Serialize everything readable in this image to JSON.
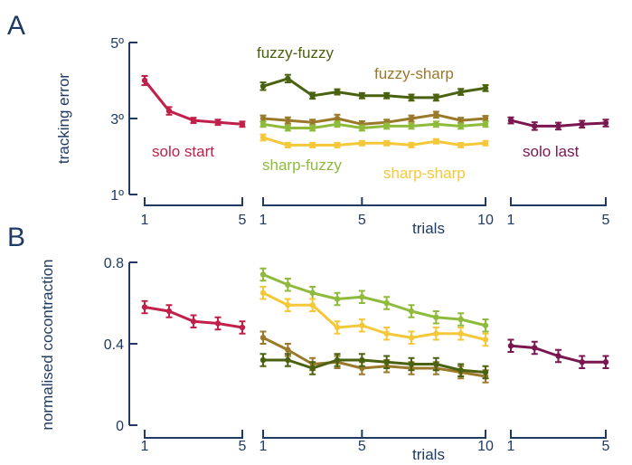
{
  "chart_data": [
    {
      "panel": "A",
      "type": "line",
      "ylabel": "tracking error",
      "xlabel": "trials",
      "ylim": [
        1,
        5
      ],
      "yticks": [
        1,
        3,
        5
      ],
      "ytick_labels": [
        "1º",
        "3º",
        "5º"
      ],
      "groups": [
        {
          "x": [
            1,
            2,
            3,
            4,
            5
          ],
          "xticks": [
            1,
            5
          ],
          "series": [
            {
              "name": "solo start",
              "color": "#c0204a",
              "y": [
                4.0,
                3.2,
                2.95,
                2.9,
                2.85
              ],
              "err": [
                0.12,
                0.1,
                0.07,
                0.07,
                0.07
              ]
            }
          ]
        },
        {
          "x": [
            1,
            2,
            3,
            4,
            5,
            6,
            7,
            8,
            9,
            10
          ],
          "xticks": [
            1,
            5,
            10
          ],
          "series": [
            {
              "name": "fuzzy-fuzzy",
              "color": "#4a6210",
              "y": [
                3.85,
                4.05,
                3.6,
                3.7,
                3.6,
                3.6,
                3.55,
                3.55,
                3.7,
                3.8
              ],
              "err": [
                0.1,
                0.1,
                0.08,
                0.07,
                0.07,
                0.07,
                0.08,
                0.08,
                0.08,
                0.08
              ]
            },
            {
              "name": "fuzzy-sharp",
              "color": "#9a7a2a",
              "y": [
                3.0,
                2.95,
                2.9,
                3.0,
                2.85,
                2.9,
                3.0,
                3.1,
                2.95,
                3.0
              ],
              "err": [
                0.08,
                0.08,
                0.07,
                0.1,
                0.08,
                0.07,
                0.08,
                0.08,
                0.07,
                0.07
              ]
            },
            {
              "name": "sharp-fuzzy",
              "color": "#8fbb3c",
              "y": [
                2.85,
                2.75,
                2.75,
                2.85,
                2.75,
                2.8,
                2.8,
                2.85,
                2.8,
                2.85
              ],
              "err": [
                0.07,
                0.07,
                0.07,
                0.07,
                0.07,
                0.07,
                0.07,
                0.07,
                0.07,
                0.07
              ]
            },
            {
              "name": "sharp-sharp",
              "color": "#f5c83a",
              "y": [
                2.5,
                2.3,
                2.3,
                2.3,
                2.35,
                2.35,
                2.3,
                2.4,
                2.3,
                2.35
              ],
              "err": [
                0.08,
                0.06,
                0.06,
                0.06,
                0.06,
                0.06,
                0.06,
                0.06,
                0.06,
                0.06
              ]
            }
          ]
        },
        {
          "x": [
            1,
            2,
            3,
            4,
            5
          ],
          "xticks": [
            1,
            5
          ],
          "series": [
            {
              "name": "solo last",
              "color": "#7a1650",
              "y": [
                2.95,
                2.8,
                2.8,
                2.85,
                2.88
              ],
              "err": [
                0.08,
                0.1,
                0.09,
                0.09,
                0.09
              ]
            }
          ]
        }
      ]
    },
    {
      "panel": "B",
      "type": "line",
      "ylabel": "normalised cocontraction",
      "xlabel": "trials",
      "ylim": [
        0,
        0.8
      ],
      "yticks": [
        0,
        0.4,
        0.8
      ],
      "ytick_labels": [
        "0",
        "0.4",
        "0.8"
      ],
      "groups": [
        {
          "x": [
            1,
            2,
            3,
            4,
            5
          ],
          "xticks": [
            1,
            5
          ],
          "series": [
            {
              "name": "solo start",
              "color": "#c0204a",
              "y": [
                0.58,
                0.56,
                0.51,
                0.5,
                0.48
              ],
              "err": [
                0.03,
                0.03,
                0.03,
                0.03,
                0.03
              ]
            }
          ]
        },
        {
          "x": [
            1,
            2,
            3,
            4,
            5,
            6,
            7,
            8,
            9,
            10
          ],
          "xticks": [
            1,
            5,
            10
          ],
          "series": [
            {
              "name": "sharp-fuzzy",
              "color": "#8fbb3c",
              "y": [
                0.74,
                0.69,
                0.65,
                0.62,
                0.63,
                0.6,
                0.56,
                0.53,
                0.52,
                0.49
              ],
              "err": [
                0.03,
                0.03,
                0.03,
                0.03,
                0.03,
                0.03,
                0.03,
                0.03,
                0.03,
                0.03
              ]
            },
            {
              "name": "sharp-sharp",
              "color": "#f5c83a",
              "y": [
                0.65,
                0.59,
                0.59,
                0.48,
                0.49,
                0.45,
                0.43,
                0.45,
                0.45,
                0.42
              ],
              "err": [
                0.03,
                0.03,
                0.03,
                0.03,
                0.03,
                0.03,
                0.03,
                0.03,
                0.03,
                0.03
              ]
            },
            {
              "name": "fuzzy-sharp",
              "color": "#9a7a2a",
              "y": [
                0.43,
                0.37,
                0.3,
                0.31,
                0.28,
                0.29,
                0.28,
                0.28,
                0.26,
                0.24
              ],
              "err": [
                0.03,
                0.03,
                0.03,
                0.03,
                0.03,
                0.03,
                0.03,
                0.03,
                0.03,
                0.03
              ]
            },
            {
              "name": "fuzzy-fuzzy",
              "color": "#4a6210",
              "y": [
                0.32,
                0.32,
                0.28,
                0.32,
                0.32,
                0.31,
                0.3,
                0.3,
                0.27,
                0.26
              ],
              "err": [
                0.03,
                0.03,
                0.03,
                0.03,
                0.03,
                0.03,
                0.03,
                0.03,
                0.03,
                0.03
              ]
            }
          ]
        },
        {
          "x": [
            1,
            2,
            3,
            4,
            5
          ],
          "xticks": [
            1,
            5
          ],
          "series": [
            {
              "name": "solo last",
              "color": "#7a1650",
              "y": [
                0.39,
                0.38,
                0.34,
                0.31,
                0.31
              ],
              "err": [
                0.03,
                0.03,
                0.03,
                0.03,
                0.03
              ]
            }
          ]
        }
      ]
    }
  ]
}
